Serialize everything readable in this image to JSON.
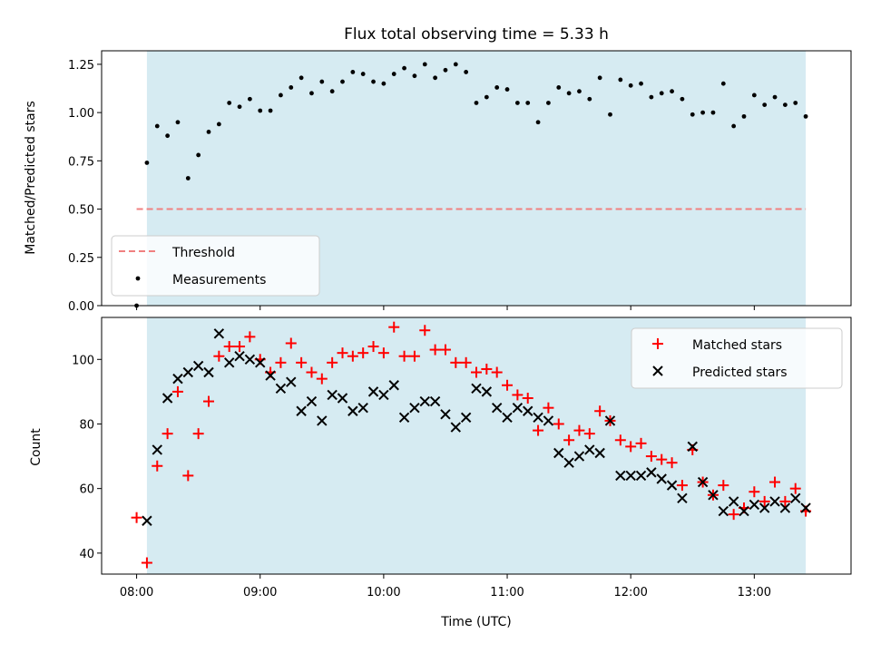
{
  "chart_data": [
    {
      "type": "scatter",
      "title": "Flux total observing time = 5.33 h",
      "xlabel": "",
      "ylabel": "Matched/Predicted stars",
      "ylim": [
        0,
        1.32
      ],
      "yticks": [
        "0.00",
        "0.25",
        "0.50",
        "0.75",
        "1.00",
        "1.25"
      ],
      "ytick_values": [
        0,
        0.25,
        0.5,
        0.75,
        1.0,
        1.25
      ],
      "xlim": [
        "07:43",
        "13:47"
      ],
      "shaded_interval": [
        "08:05",
        "13:25"
      ],
      "shade_color": "#add8e6",
      "threshold": {
        "name": "Threshold",
        "value": 0.5,
        "x_range": [
          "08:00",
          "13:25"
        ],
        "color": "#f08080"
      },
      "legend": {
        "position": "lower-left",
        "entries": [
          "Threshold",
          "Measurements"
        ]
      },
      "series": [
        {
          "name": "Measurements",
          "color": "#000000",
          "x": [
            "08:00",
            "08:05",
            "08:10",
            "08:15",
            "08:20",
            "08:25",
            "08:30",
            "08:35",
            "08:40",
            "08:45",
            "08:50",
            "08:55",
            "09:00",
            "09:05",
            "09:10",
            "09:15",
            "09:20",
            "09:25",
            "09:30",
            "09:35",
            "09:40",
            "09:45",
            "09:50",
            "09:55",
            "10:00",
            "10:05",
            "10:10",
            "10:15",
            "10:20",
            "10:25",
            "10:30",
            "10:35",
            "10:40",
            "10:45",
            "10:50",
            "10:55",
            "11:00",
            "11:05",
            "11:10",
            "11:15",
            "11:20",
            "11:25",
            "11:30",
            "11:35",
            "11:40",
            "11:45",
            "11:50",
            "11:55",
            "12:00",
            "12:05",
            "12:10",
            "12:15",
            "12:20",
            "12:25",
            "12:30",
            "12:35",
            "12:40",
            "12:45",
            "12:50",
            "12:55",
            "13:00",
            "13:05",
            "13:10",
            "13:15",
            "13:20",
            "13:25"
          ],
          "y": [
            0.0,
            0.74,
            0.93,
            0.88,
            0.95,
            0.66,
            0.78,
            0.9,
            0.94,
            1.05,
            1.03,
            1.07,
            1.01,
            1.01,
            1.09,
            1.13,
            1.18,
            1.1,
            1.16,
            1.11,
            1.16,
            1.21,
            1.2,
            1.16,
            1.15,
            1.2,
            1.23,
            1.19,
            1.25,
            1.18,
            1.22,
            1.25,
            1.21,
            1.05,
            1.08,
            1.13,
            1.12,
            1.05,
            1.05,
            0.95,
            1.05,
            1.13,
            1.1,
            1.11,
            1.07,
            1.18,
            0.99,
            1.17,
            1.14,
            1.15,
            1.08,
            1.1,
            1.11,
            1.07,
            0.99,
            1.0,
            1.0,
            1.15,
            0.93,
            0.98,
            1.09,
            1.04,
            1.08,
            1.04,
            1.05,
            0.98
          ]
        }
      ]
    },
    {
      "type": "scatter",
      "xlabel": "Time (UTC)",
      "ylabel": "Count",
      "ylim": [
        33.5,
        113
      ],
      "yticks": [
        "40",
        "60",
        "80",
        "100"
      ],
      "ytick_values": [
        40,
        60,
        80,
        100
      ],
      "xlim": [
        "07:43",
        "13:47"
      ],
      "xticks": [
        "08:00",
        "09:00",
        "10:00",
        "11:00",
        "12:00",
        "13:00"
      ],
      "shaded_interval": [
        "08:05",
        "13:25"
      ],
      "shade_color": "#add8e6",
      "legend": {
        "position": "top-right",
        "entries": [
          "Matched stars",
          "Predicted stars"
        ]
      },
      "series": [
        {
          "name": "Matched stars",
          "marker": "+",
          "color": "#ff0000",
          "x": [
            "08:00",
            "08:05",
            "08:10",
            "08:15",
            "08:20",
            "08:25",
            "08:30",
            "08:35",
            "08:40",
            "08:45",
            "08:50",
            "08:55",
            "09:00",
            "09:05",
            "09:10",
            "09:15",
            "09:20",
            "09:25",
            "09:30",
            "09:35",
            "09:40",
            "09:45",
            "09:50",
            "09:55",
            "10:00",
            "10:05",
            "10:10",
            "10:15",
            "10:20",
            "10:25",
            "10:30",
            "10:35",
            "10:40",
            "10:45",
            "10:50",
            "10:55",
            "11:00",
            "11:05",
            "11:10",
            "11:15",
            "11:20",
            "11:25",
            "11:30",
            "11:35",
            "11:40",
            "11:45",
            "11:50",
            "11:55",
            "12:00",
            "12:05",
            "12:10",
            "12:15",
            "12:20",
            "12:25",
            "12:30",
            "12:35",
            "12:40",
            "12:45",
            "12:50",
            "12:55",
            "13:00",
            "13:05",
            "13:10",
            "13:15",
            "13:20",
            "13:25"
          ],
          "y": [
            51,
            37,
            67,
            77,
            90,
            64,
            77,
            87,
            101,
            104,
            104,
            107,
            100,
            96,
            99,
            105,
            99,
            96,
            94,
            99,
            102,
            101,
            102,
            104,
            102,
            110,
            101,
            101,
            109,
            103,
            103,
            99,
            99,
            96,
            97,
            96,
            92,
            89,
            88,
            78,
            85,
            80,
            75,
            78,
            77,
            84,
            81,
            75,
            73,
            74,
            70,
            69,
            68,
            61,
            72,
            62,
            58,
            61,
            52,
            54,
            59,
            56,
            62,
            56,
            60,
            53
          ]
        },
        {
          "name": "Predicted stars",
          "marker": "x",
          "color": "#000000",
          "x": [
            "08:00",
            "08:05",
            "08:10",
            "08:15",
            "08:20",
            "08:25",
            "08:30",
            "08:35",
            "08:40",
            "08:45",
            "08:50",
            "08:55",
            "09:00",
            "09:05",
            "09:10",
            "09:15",
            "09:20",
            "09:25",
            "09:30",
            "09:35",
            "09:40",
            "09:45",
            "09:50",
            "09:55",
            "10:00",
            "10:05",
            "10:10",
            "10:15",
            "10:20",
            "10:25",
            "10:30",
            "10:35",
            "10:40",
            "10:45",
            "10:50",
            "10:55",
            "11:00",
            "11:05",
            "11:10",
            "11:15",
            "11:20",
            "11:25",
            "11:30",
            "11:35",
            "11:40",
            "11:45",
            "11:50",
            "11:55",
            "12:00",
            "12:05",
            "12:10",
            "12:15",
            "12:20",
            "12:25",
            "12:30",
            "12:35",
            "12:40",
            "12:45",
            "12:50",
            "12:55",
            "13:00",
            "13:05",
            "13:10",
            "13:15",
            "13:20",
            "13:25"
          ],
          "y": [
            null,
            50,
            72,
            88,
            94,
            96,
            98,
            96,
            108,
            99,
            101,
            100,
            99,
            95,
            91,
            93,
            84,
            87,
            81,
            89,
            88,
            84,
            85,
            90,
            89,
            92,
            82,
            85,
            87,
            87,
            83,
            79,
            82,
            91,
            90,
            85,
            82,
            85,
            84,
            82,
            81,
            71,
            68,
            70,
            72,
            71,
            81,
            64,
            64,
            64,
            65,
            63,
            61,
            57,
            73,
            62,
            58,
            53,
            56,
            53,
            55,
            54,
            56,
            54,
            57,
            54
          ]
        }
      ]
    }
  ]
}
